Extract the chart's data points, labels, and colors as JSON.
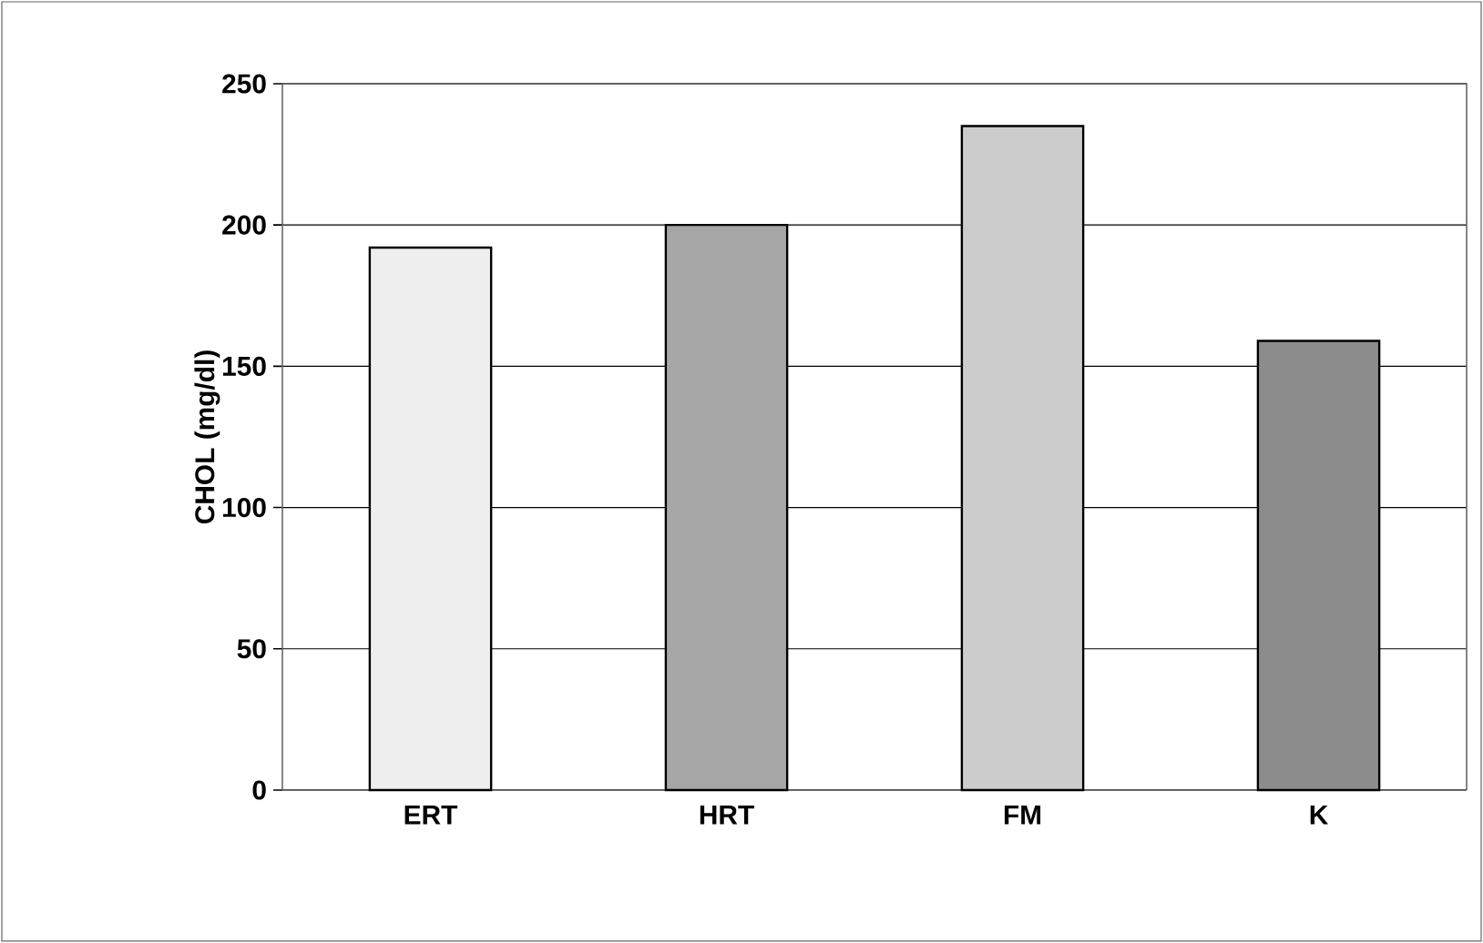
{
  "chart_data": {
    "type": "bar",
    "ylabel": "CHOL (mg/dl)",
    "categories": [
      "ERT",
      "HRT",
      "FM",
      "K"
    ],
    "values": [
      192,
      200,
      235,
      159
    ],
    "colors": [
      "#eeeeee",
      "#a6a6a6",
      "#cccccc",
      "#8c8c8c"
    ],
    "ylim": [
      0,
      250
    ],
    "yticks": [
      0,
      50,
      100,
      150,
      200,
      250
    ],
    "grid": "y"
  }
}
